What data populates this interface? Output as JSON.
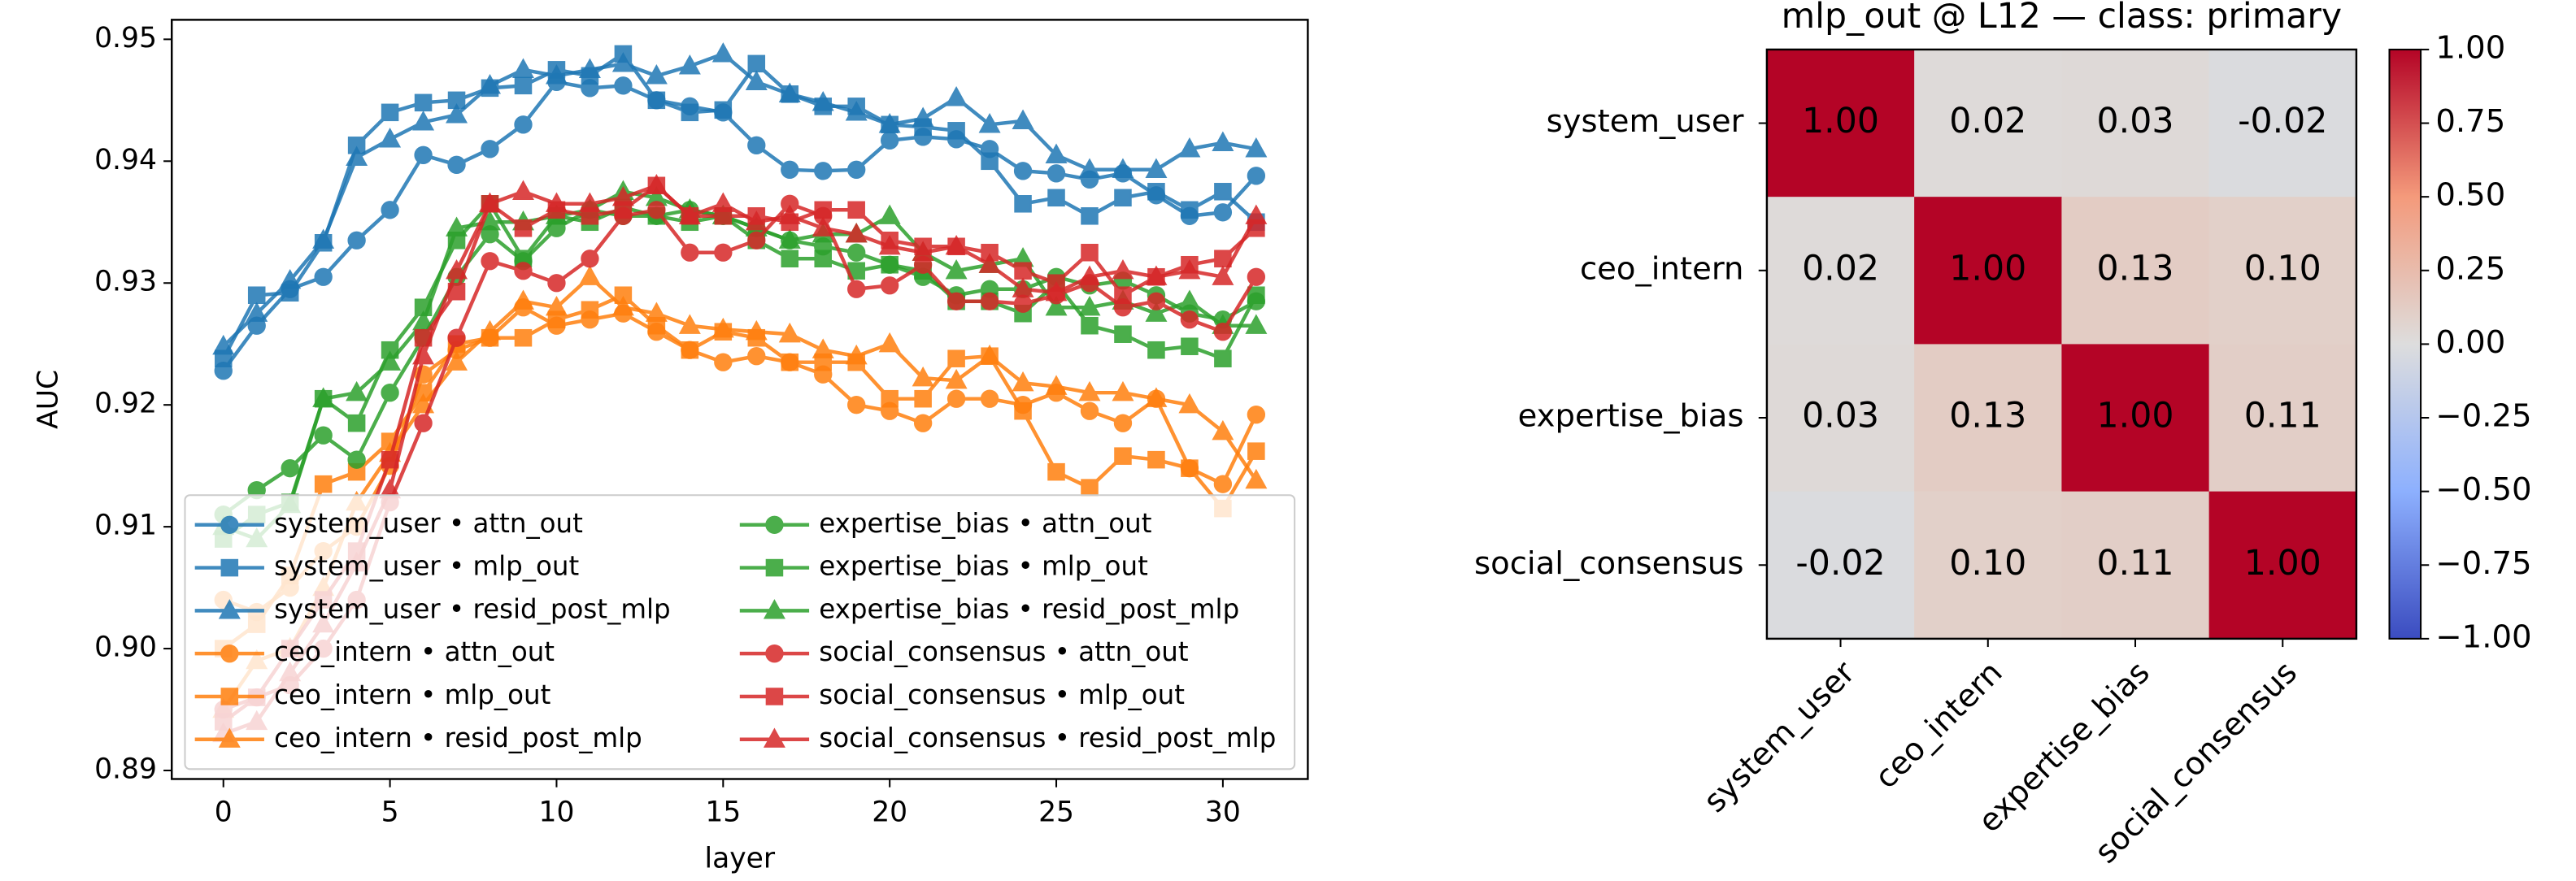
{
  "chart_data": [
    {
      "type": "line",
      "xlabel": "layer",
      "ylabel": "AUC",
      "x": [
        0,
        1,
        2,
        3,
        4,
        5,
        6,
        7,
        8,
        9,
        10,
        11,
        12,
        13,
        14,
        15,
        16,
        17,
        18,
        19,
        20,
        21,
        22,
        23,
        24,
        25,
        26,
        27,
        28,
        29,
        30,
        31
      ],
      "xlim": [
        -1.55,
        32.55
      ],
      "xticks": [
        0,
        5,
        10,
        15,
        20,
        25,
        30
      ],
      "ylim": [
        0.8893,
        0.9516
      ],
      "yticks": [
        0.89,
        {
          "value": 0.9,
          "label": "0.90"
        },
        0.91,
        0.92,
        0.93,
        0.94,
        0.95
      ],
      "legend": "lower left",
      "legend_columns": 2,
      "series": [
        {
          "name": "system_user • attn_out",
          "color": "#1f77b4",
          "marker": "o",
          "values": [
            0.9228,
            0.9265,
            0.9295,
            0.9305,
            0.9335,
            0.936,
            0.9405,
            0.9397,
            0.941,
            0.943,
            0.9465,
            0.946,
            0.9462,
            0.945,
            0.9445,
            0.944,
            0.9413,
            0.9393,
            0.9392,
            0.9393,
            0.9417,
            0.942,
            0.9418,
            0.941,
            0.9392,
            0.939,
            0.9385,
            0.939,
            0.9372,
            0.9355,
            0.9358,
            0.9388
          ]
        },
        {
          "name": "system_user • mlp_out",
          "color": "#1f77b4",
          "marker": "s",
          "values": [
            0.9238,
            0.929,
            0.9292,
            0.9333,
            0.9413,
            0.944,
            0.9448,
            0.945,
            0.946,
            0.9462,
            0.9475,
            0.947,
            0.9488,
            0.945,
            0.944,
            0.9442,
            0.948,
            0.9455,
            0.9445,
            0.9445,
            0.943,
            0.9428,
            0.9425,
            0.94,
            0.9365,
            0.937,
            0.9355,
            0.937,
            0.9375,
            0.936,
            0.9375,
            0.935
          ]
        },
        {
          "name": "system_user • resid_post_mlp",
          "color": "#1f77b4",
          "marker": "^",
          "values": [
            0.9248,
            0.9275,
            0.9302,
            0.9335,
            0.9403,
            0.9418,
            0.9432,
            0.9438,
            0.9462,
            0.9475,
            0.947,
            0.9475,
            0.948,
            0.947,
            0.9478,
            0.9488,
            0.9465,
            0.9455,
            0.9448,
            0.944,
            0.943,
            0.9435,
            0.9452,
            0.943,
            0.9433,
            0.9405,
            0.9393,
            0.9393,
            0.9393,
            0.941,
            0.9415,
            0.941
          ]
        },
        {
          "name": "ceo_intern • attn_out",
          "color": "#ff7f0e",
          "marker": "o",
          "values": [
            0.904,
            0.903,
            0.905,
            0.908,
            0.91,
            0.915,
            0.9225,
            0.9245,
            0.9255,
            0.928,
            0.9265,
            0.927,
            0.9275,
            0.926,
            0.9245,
            0.9235,
            0.924,
            0.9235,
            0.9225,
            0.92,
            0.9195,
            0.9185,
            0.9205,
            0.9205,
            0.92,
            0.921,
            0.9195,
            0.9185,
            0.9205,
            0.9148,
            0.9135,
            0.9192
          ]
        },
        {
          "name": "ceo_intern • mlp_out",
          "color": "#ff7f0e",
          "marker": "s",
          "values": [
            0.9,
            0.902,
            0.906,
            0.9135,
            0.9145,
            0.917,
            0.921,
            0.925,
            0.9255,
            0.9255,
            0.927,
            0.9278,
            0.929,
            0.9265,
            0.9245,
            0.926,
            0.9255,
            0.9235,
            0.9235,
            0.9235,
            0.9205,
            0.9205,
            0.9238,
            0.924,
            0.9195,
            0.9145,
            0.9132,
            0.9158,
            0.9155,
            0.9148,
            0.9115,
            0.9162
          ]
        },
        {
          "name": "ceo_intern • resid_post_mlp",
          "color": "#ff7f0e",
          "marker": "^",
          "values": [
            0.895,
            0.899,
            0.9,
            0.905,
            0.912,
            0.916,
            0.92,
            0.9235,
            0.926,
            0.9285,
            0.928,
            0.9305,
            0.928,
            0.9275,
            0.9265,
            0.9262,
            0.926,
            0.9258,
            0.9245,
            0.924,
            0.925,
            0.9222,
            0.922,
            0.924,
            0.9218,
            0.9215,
            0.921,
            0.921,
            0.9205,
            0.92,
            0.9178,
            0.9138
          ]
        },
        {
          "name": "expertise_bias • attn_out",
          "color": "#2ca02c",
          "marker": "o",
          "values": [
            0.911,
            0.913,
            0.9148,
            0.9175,
            0.9155,
            0.921,
            0.9255,
            0.9305,
            0.934,
            0.9318,
            0.9345,
            0.936,
            0.9355,
            0.9355,
            0.936,
            0.9355,
            0.9345,
            0.9335,
            0.933,
            0.9325,
            0.9315,
            0.9305,
            0.929,
            0.9295,
            0.9295,
            0.9305,
            0.9298,
            0.9302,
            0.929,
            0.9275,
            0.927,
            0.9285
          ]
        },
        {
          "name": "expertise_bias • mlp_out",
          "color": "#2ca02c",
          "marker": "s",
          "values": [
            0.909,
            0.911,
            0.912,
            0.9205,
            0.9185,
            0.9245,
            0.928,
            0.9335,
            0.9365,
            0.932,
            0.9355,
            0.935,
            0.9362,
            0.9355,
            0.935,
            0.9355,
            0.9335,
            0.932,
            0.932,
            0.931,
            0.9315,
            0.931,
            0.9285,
            0.9285,
            0.9275,
            0.93,
            0.9265,
            0.9258,
            0.9245,
            0.9248,
            0.9238,
            0.929
          ]
        },
        {
          "name": "expertise_bias • resid_post_mlp",
          "color": "#2ca02c",
          "marker": "^",
          "values": [
            0.91,
            0.909,
            0.9118,
            0.9205,
            0.921,
            0.9235,
            0.9268,
            0.9345,
            0.935,
            0.935,
            0.9355,
            0.936,
            0.9375,
            0.937,
            0.936,
            0.9355,
            0.9345,
            0.9335,
            0.934,
            0.934,
            0.9355,
            0.9325,
            0.931,
            0.9315,
            0.932,
            0.928,
            0.928,
            0.9285,
            0.9275,
            0.9285,
            0.9265,
            0.9265
          ]
        },
        {
          "name": "social_consensus • attn_out",
          "color": "#d62728",
          "marker": "o",
          "values": [
            0.895,
            0.896,
            0.897,
            0.9,
            0.904,
            0.912,
            0.9185,
            0.9255,
            0.9318,
            0.931,
            0.93,
            0.932,
            0.9355,
            0.936,
            0.9325,
            0.9325,
            0.9335,
            0.9365,
            0.9355,
            0.9295,
            0.9298,
            0.9315,
            0.9285,
            0.9285,
            0.9283,
            0.929,
            0.93,
            0.928,
            0.9285,
            0.927,
            0.926,
            0.9305
          ]
        },
        {
          "name": "social_consensus • mlp_out",
          "color": "#d62728",
          "marker": "s",
          "values": [
            0.894,
            0.896,
            0.9,
            0.904,
            0.908,
            0.9155,
            0.9255,
            0.9293,
            0.9365,
            0.9345,
            0.936,
            0.9355,
            0.936,
            0.938,
            0.9355,
            0.9355,
            0.9355,
            0.935,
            0.936,
            0.936,
            0.9335,
            0.933,
            0.933,
            0.9325,
            0.931,
            0.93,
            0.9325,
            0.929,
            0.9305,
            0.9315,
            0.932,
            0.9345
          ]
        },
        {
          "name": "social_consensus • resid_post_mlp",
          "color": "#d62728",
          "marker": "^",
          "values": [
            0.893,
            0.894,
            0.898,
            0.902,
            0.907,
            0.913,
            0.924,
            0.931,
            0.9365,
            0.9375,
            0.9365,
            0.9365,
            0.937,
            0.938,
            0.9355,
            0.9365,
            0.935,
            0.9355,
            0.9345,
            0.934,
            0.933,
            0.9325,
            0.933,
            0.9315,
            0.9295,
            0.9292,
            0.9305,
            0.931,
            0.9305,
            0.931,
            0.9305,
            0.9355
          ]
        }
      ]
    },
    {
      "type": "heatmap",
      "title": "mlp_out @ L12 — class: primary",
      "cmap": "coolwarm",
      "rows": [
        "system_user",
        "ceo_intern",
        "expertise_bias",
        "social_consensus"
      ],
      "columns": [
        "system_user",
        "ceo_intern",
        "expertise_bias",
        "social_consensus"
      ],
      "values": [
        [
          1,
          0.02,
          0.03,
          -0.02
        ],
        [
          0.02,
          1,
          0.13,
          0.1
        ],
        [
          0.03,
          0.13,
          1,
          0.11
        ],
        [
          -0.02,
          0.1,
          0.11,
          1
        ]
      ],
      "value_labels": [
        [
          "1.00",
          "0.02",
          "0.03",
          "-0.02"
        ],
        [
          "0.02",
          "1.00",
          "0.13",
          "0.10"
        ],
        [
          "0.03",
          "0.13",
          "1.00",
          "0.11"
        ],
        [
          "-0.02",
          "0.10",
          "0.11",
          "1.00"
        ]
      ],
      "clim": [
        -1,
        1
      ],
      "cbar_ticks": [
        {
          "value": 1,
          "label": "1.00"
        },
        {
          "value": 0.75,
          "label": "0.75"
        },
        {
          "value": 0.5,
          "label": "0.50"
        },
        {
          "value": 0.25,
          "label": "0.25"
        },
        {
          "value": 0,
          "label": "0.00"
        },
        {
          "value": -0.25,
          "label": "−0.25"
        },
        {
          "value": -0.5,
          "label": "−0.50"
        },
        {
          "value": -0.75,
          "label": "−0.75"
        },
        {
          "value": -1,
          "label": "−1.00"
        }
      ]
    }
  ]
}
